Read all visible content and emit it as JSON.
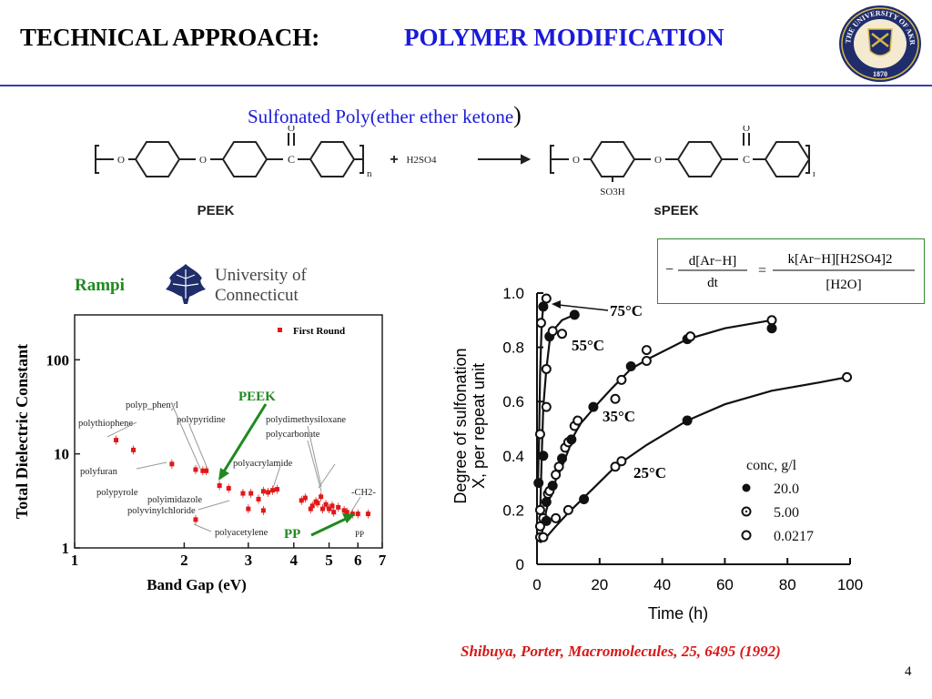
{
  "slide": {
    "title_prefix": "TECHNICAL APPROACH:",
    "title_main": "POLYMER MODIFICATION",
    "subtitle": "Sulfonated Poly(ether ether ketone",
    "subtitle_close": ")",
    "page_number": "4",
    "reference": "Shibuya, Porter, Macromolecules, 25, 6495 (1992)"
  },
  "seal": {
    "text_top": "THE UNIVERSITY OF AKRON",
    "year": "1870"
  },
  "reaction": {
    "reactant_label": "PEEK",
    "product_label": "sPEEK",
    "plus": "+",
    "reagent": "H2SO4",
    "substituent": "SO3H",
    "repeat_index": "n",
    "carbonyl_o": "O",
    "ether_o": "O"
  },
  "credits": {
    "author": "Rampi",
    "institution_line1": "University of",
    "institution_line2": "Connecticut"
  },
  "equation": {
    "lhs_num": "d[Ar−H]",
    "lhs_den": "dt",
    "rhs_num": "k[Ar−H][H2SO4]2",
    "rhs_den": "[H2O]"
  },
  "chart_data": [
    {
      "type": "scatter",
      "title": "",
      "xlabel": "Band Gap (eV)",
      "ylabel": "Total Dielectric Constant",
      "x_scale": "log",
      "y_scale": "log",
      "xlim": [
        1,
        7
      ],
      "ylim": [
        1,
        300
      ],
      "x_ticks": [
        "1",
        "2",
        "3",
        "4",
        "5",
        "6",
        "7"
      ],
      "y_ticks": [
        "1",
        "10",
        "100"
      ],
      "legend": {
        "label": "First Round",
        "placement": "top-right"
      },
      "series": [
        {
          "name": "First Round",
          "color": "#e01818",
          "points": [
            [
              1.3,
              14
            ],
            [
              1.45,
              11
            ],
            [
              1.85,
              7.8
            ],
            [
              2.15,
              6.8
            ],
            [
              2.25,
              6.6
            ],
            [
              2.3,
              6.6
            ],
            [
              2.15,
              2.0
            ],
            [
              2.5,
              4.6
            ],
            [
              2.65,
              4.3
            ],
            [
              2.9,
              3.8
            ],
            [
              3.05,
              3.8
            ],
            [
              3.2,
              3.3
            ],
            [
              3.3,
              4.0
            ],
            [
              3.4,
              3.9
            ],
            [
              3.5,
              4.1
            ],
            [
              3.6,
              4.2
            ],
            [
              3.0,
              2.6
            ],
            [
              3.3,
              2.5
            ],
            [
              4.2,
              3.2
            ],
            [
              4.3,
              3.4
            ],
            [
              4.45,
              2.6
            ],
            [
              4.5,
              2.8
            ],
            [
              4.6,
              3.1
            ],
            [
              4.65,
              3.0
            ],
            [
              4.75,
              3.5
            ],
            [
              4.8,
              2.6
            ],
            [
              4.9,
              2.9
            ],
            [
              5.0,
              2.6
            ],
            [
              5.1,
              2.8
            ],
            [
              5.15,
              2.4
            ],
            [
              5.3,
              2.7
            ],
            [
              5.5,
              2.5
            ],
            [
              5.6,
              2.4
            ],
            [
              5.8,
              2.3
            ],
            [
              6.0,
              2.3
            ],
            [
              6.4,
              2.3
            ]
          ]
        }
      ],
      "annotations": [
        "polyp_phenyl",
        "polythiophene",
        "polypyridine",
        "polydimethysiloxane",
        "polycarbonate",
        "polyacrylamide",
        "polyfuran",
        "polypyrole",
        "polyimidazole",
        "polyvinylchloride",
        "polyacetylene",
        "-CH2-",
        "PP"
      ],
      "callouts": [
        "PEEK",
        "PP"
      ]
    },
    {
      "type": "line",
      "title": "",
      "xlabel": "Time (h)",
      "ylabel_line1": "Degree of sulfonation",
      "ylabel_line2": "X,  per repeat unit",
      "xlim": [
        0,
        100
      ],
      "ylim": [
        0,
        1.0
      ],
      "x_ticks": [
        "0",
        "20",
        "40",
        "60",
        "80",
        "100"
      ],
      "y_ticks": [
        "0",
        "0.2",
        "0.4",
        "0.6",
        "0.8",
        "1.0"
      ],
      "legend": {
        "title": "conc, g/l",
        "entries": [
          "20.0",
          "5.00",
          "0.0217"
        ],
        "placement": "bottom-right"
      },
      "series": [
        {
          "name": "75°C",
          "points": [
            [
              0.3,
              0.3
            ],
            [
              0.7,
              0.48
            ],
            [
              1,
              0.7
            ],
            [
              1.5,
              0.89
            ],
            [
              2,
              0.95
            ],
            [
              3,
              0.98
            ],
            [
              4,
              0.99
            ]
          ]
        },
        {
          "name": "55°C",
          "points": [
            [
              1,
              0.18
            ],
            [
              1.5,
              0.4
            ],
            [
              2,
              0.58
            ],
            [
              3,
              0.72
            ],
            [
              4,
              0.82
            ],
            [
              5,
              0.86
            ],
            [
              8,
              0.9
            ],
            [
              12,
              0.92
            ]
          ]
        },
        {
          "name": "35°C",
          "points": [
            [
              1,
              0.08
            ],
            [
              2,
              0.14
            ],
            [
              3,
              0.2
            ],
            [
              4,
              0.24
            ],
            [
              5,
              0.28
            ],
            [
              6,
              0.31
            ],
            [
              8,
              0.36
            ],
            [
              10,
              0.42
            ],
            [
              12,
              0.48
            ],
            [
              14,
              0.52
            ],
            [
              20,
              0.6
            ],
            [
              24,
              0.65
            ],
            [
              30,
              0.72
            ],
            [
              36,
              0.76
            ],
            [
              48,
              0.83
            ],
            [
              60,
              0.87
            ],
            [
              75,
              0.9
            ]
          ]
        },
        {
          "name": "25°C",
          "points": [
            [
              1,
              0.08
            ],
            [
              3,
              0.1
            ],
            [
              6,
              0.14
            ],
            [
              10,
              0.19
            ],
            [
              18,
              0.28
            ],
            [
              25,
              0.36
            ],
            [
              35,
              0.44
            ],
            [
              48,
              0.53
            ],
            [
              60,
              0.59
            ],
            [
              75,
              0.64
            ],
            [
              90,
              0.67
            ],
            [
              99,
              0.69
            ]
          ]
        }
      ],
      "markers": [
        [
          0.5,
          0.3
        ],
        [
          1,
          0.48
        ],
        [
          1.3,
          0.89
        ],
        [
          2,
          0.95
        ],
        [
          3,
          0.98
        ],
        [
          1,
          0.2
        ],
        [
          2,
          0.4
        ],
        [
          3,
          0.58
        ],
        [
          3,
          0.72
        ],
        [
          4,
          0.84
        ],
        [
          5,
          0.86
        ],
        [
          8,
          0.85
        ],
        [
          12,
          0.92
        ],
        [
          1,
          0.14
        ],
        [
          2,
          0.17
        ],
        [
          3,
          0.23
        ],
        [
          3.5,
          0.26
        ],
        [
          4,
          0.27
        ],
        [
          5,
          0.29
        ],
        [
          6,
          0.33
        ],
        [
          7,
          0.36
        ],
        [
          8,
          0.39
        ],
        [
          9,
          0.43
        ],
        [
          10,
          0.45
        ],
        [
          11,
          0.46
        ],
        [
          12,
          0.51
        ],
        [
          13,
          0.53
        ],
        [
          18,
          0.58
        ],
        [
          25,
          0.61
        ],
        [
          27,
          0.68
        ],
        [
          30,
          0.73
        ],
        [
          35,
          0.79
        ],
        [
          35,
          0.75
        ],
        [
          48,
          0.83
        ],
        [
          49,
          0.84
        ],
        [
          75,
          0.9
        ],
        [
          75,
          0.87
        ],
        [
          1,
          0.1
        ],
        [
          2,
          0.1
        ],
        [
          3,
          0.16
        ],
        [
          6,
          0.17
        ],
        [
          10,
          0.2
        ],
        [
          15,
          0.24
        ],
        [
          25,
          0.36
        ],
        [
          27,
          0.38
        ],
        [
          48,
          0.53
        ],
        [
          99,
          0.69
        ]
      ]
    }
  ]
}
